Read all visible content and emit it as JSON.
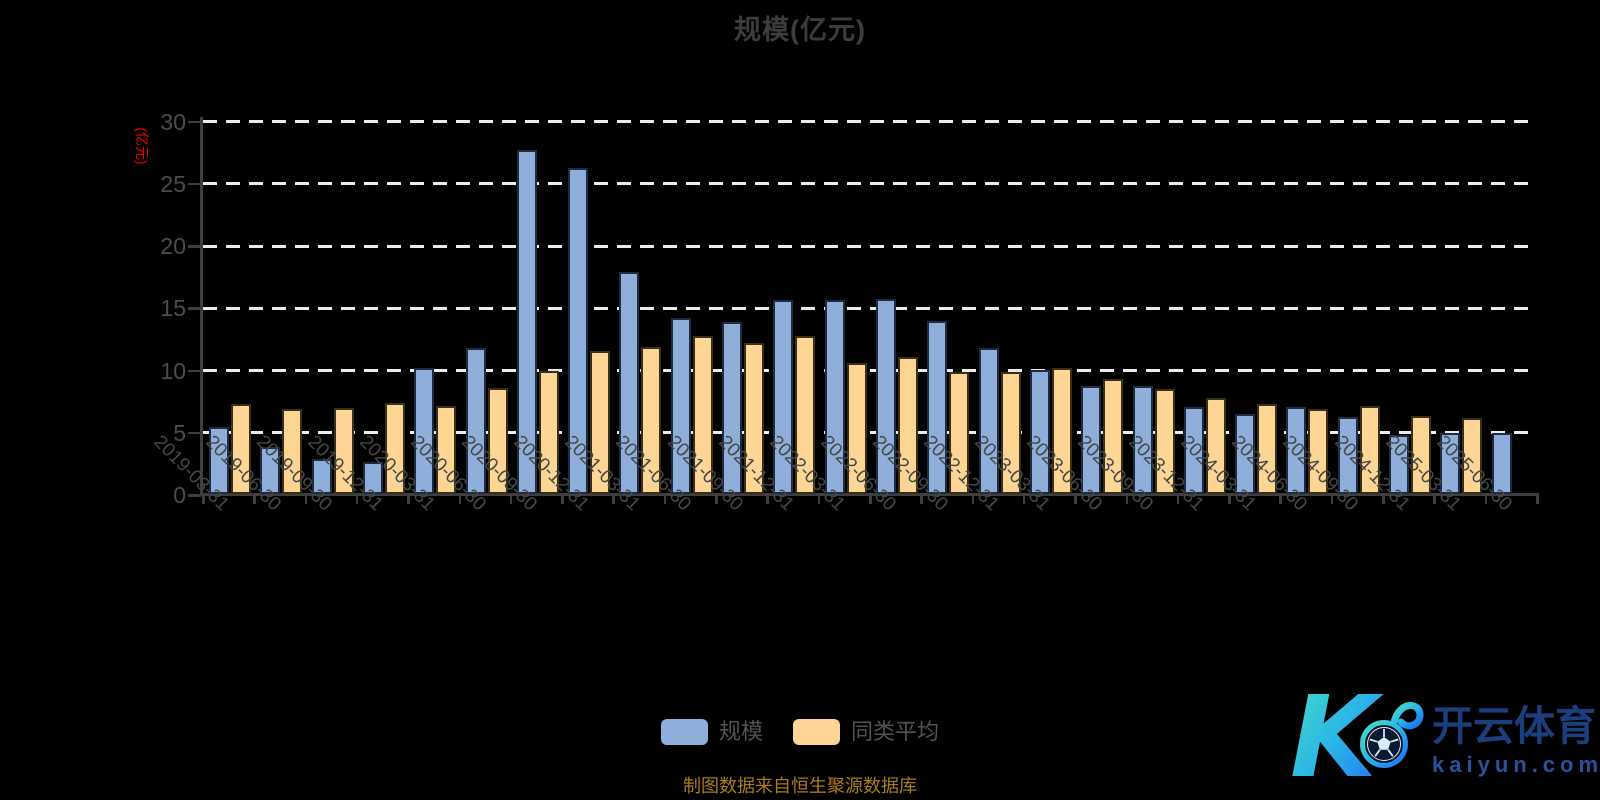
{
  "title": "规模(亿元)",
  "y_axis": {
    "name": "(亿元)",
    "ticks": [
      0,
      5,
      10,
      15,
      20,
      25,
      30
    ],
    "max": 30
  },
  "legend": {
    "items": [
      {
        "label": "规模",
        "color": "#8fafda"
      },
      {
        "label": "同类平均",
        "color": "#fdd695"
      }
    ]
  },
  "footer": "制图数据来自恒生聚源数据库",
  "logo": {
    "brand": "开云体育",
    "domain": "kaiyun.com"
  },
  "colors": {
    "background": "#000000",
    "title": "#3c3c3c",
    "axis": "#3e3e3e",
    "axis_label": "#4c4c4c",
    "grid": "#ebebeb",
    "y_axis_name": "#ee0000",
    "footer": "#a97d1b",
    "legend_text": "#525252",
    "bar_scale": "#8fafda",
    "bar_average": "#fdd695",
    "logo_brand_text": "#1b3e7e",
    "logo_domain_text": "#2a529c",
    "logo_gradient": [
      "#45e0c0",
      "#2bb5e8",
      "#1d6cf2"
    ]
  },
  "chart_data": {
    "type": "bar",
    "title": "规模(亿元)",
    "xlabel": "",
    "ylabel": "(亿元)",
    "ylim": [
      0,
      30
    ],
    "y_tick_step": 5,
    "grid": "horizontal-dashed",
    "legend_position": "bottom-center",
    "categories": [
      "2019-03-31",
      "2019-06-30",
      "2019-09-30",
      "2019-12-31",
      "2020-03-31",
      "2020-06-30",
      "2020-09-30",
      "2020-12-31",
      "2021-03-31",
      "2021-06-30",
      "2021-09-30",
      "2021-12-31",
      "2022-03-31",
      "2022-06-30",
      "2022-09-30",
      "2022-12-31",
      "2023-03-31",
      "2023-06-30",
      "2023-09-30",
      "2023-12-31",
      "2024-03-31",
      "2024-06-30",
      "2024-09-30",
      "2024-12-31",
      "2025-03-31",
      "2025-06-30"
    ],
    "series": [
      {
        "name": "规模",
        "color": "#8fafda",
        "border": "#1e2c42",
        "values": [
          5.4,
          3.8,
          2.8,
          2.6,
          10.1,
          11.7,
          27.6,
          26.2,
          17.8,
          14.1,
          13.8,
          15.6,
          15.6,
          15.7,
          13.9,
          11.7,
          10.0,
          8.7,
          8.7,
          7.0,
          6.4,
          7.0,
          6.2,
          4.7,
          4.9,
          4.9
        ]
      },
      {
        "name": "同类平均",
        "color": "#fdd695",
        "border": "#3a2f14",
        "values": [
          7.2,
          6.8,
          6.9,
          7.3,
          7.1,
          8.5,
          9.9,
          11.5,
          11.8,
          12.7,
          12.1,
          12.7,
          10.5,
          11.0,
          9.8,
          9.8,
          10.1,
          9.2,
          8.4,
          7.7,
          7.2,
          6.8,
          7.1,
          6.3,
          6.1,
          null
        ]
      }
    ]
  }
}
